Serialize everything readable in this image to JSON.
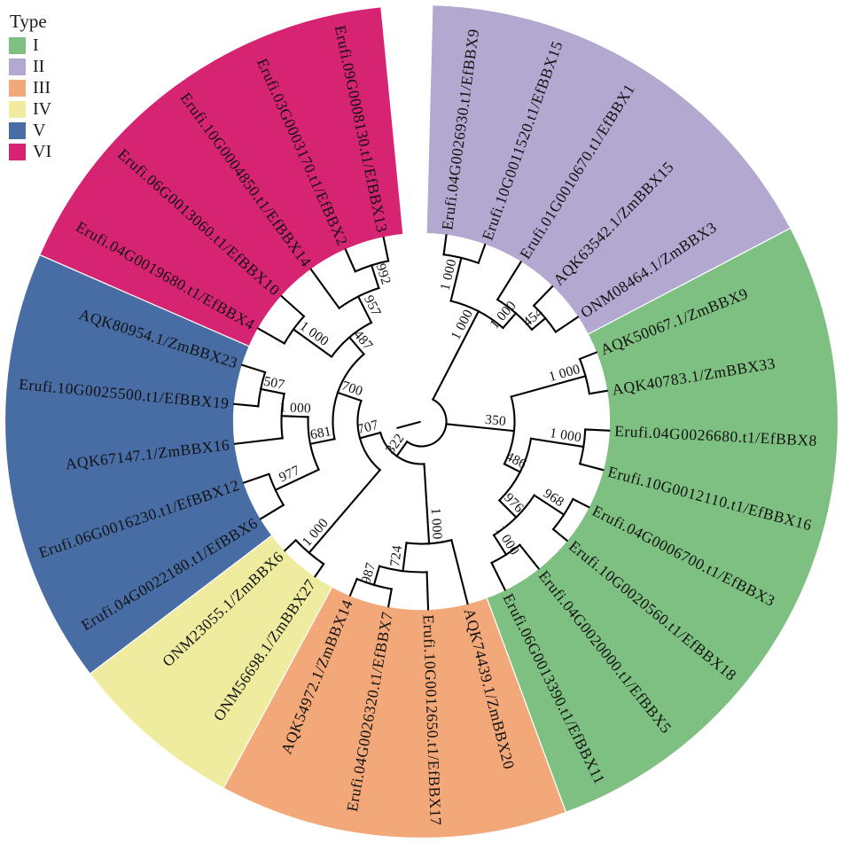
{
  "figure": {
    "kind": "circular-phylogenetic-tree",
    "background": "#ffffff",
    "branch_color": "#000000",
    "sector_divider_color": "#ffffff"
  },
  "legend": {
    "title": "Type",
    "items": [
      {
        "label": "I",
        "color": "#7EC081"
      },
      {
        "label": "II",
        "color": "#B3A8D0"
      },
      {
        "label": "III",
        "color": "#F2A878"
      },
      {
        "label": "IV",
        "color": "#EFEC9F"
      },
      {
        "label": "V",
        "color": "#486CA4"
      },
      {
        "label": "VI",
        "color": "#D62473"
      }
    ]
  },
  "chart_data": {
    "type": "circular-cladogram",
    "title": "",
    "legend_position": "top-left",
    "groups": {
      "I": [
        "AQK50067.1/ZmBBX9",
        "AQK40783.1/ZmBBX33",
        "Erufi.04G0026680.t1/EfBBX8",
        "Erufi.10G0012110.t1/EfBBX16",
        "Erufi.04G0006700.t1/EfBBX3",
        "Erufi.10G0020560.t1/EfBBX18",
        "Erufi.04G0020000.t1/EfBBX5",
        "Erufi.06G0013390.t1/EfBBX11"
      ],
      "II": [
        "Erufi.04G0026930.t1/EfBBX9",
        "Erufi.10G0011520.t1/EfBBX15",
        "Erufi.01G0010670.t1/EfBBX1",
        "AQK63542.1/ZmBBX15",
        "ONM08464.1/ZmBBX3"
      ],
      "III": [
        "AQK74439.1/ZmBBX20",
        "Erufi.10G0012650.t1/EfBBX17",
        "Erufi.04G0026320.t1/EfBBX7",
        "AQK54972.1/ZmBBX14"
      ],
      "IV": [
        "ONM56698.1/ZmBBX27",
        "ONM23055.1/ZmBBX6"
      ],
      "V": [
        "Erufi.04G0022180.t1/EfBBX6",
        "Erufi.06G0016230.t1/EfBBX12",
        "AQK67147.1/ZmBBX16",
        "Erufi.10G0025500.t1/EfBBX19",
        "AQK80954.1/ZmBBX23"
      ],
      "VI": [
        "Erufi.04G0019680.t1/EfBBX4",
        "Erufi.06G0013060.t1/EfBBX10",
        "Erufi.10G0004850.t1/EfBBX14",
        "Erufi.03G0003170.t1/EfBBX2",
        "Erufi.09G0008130.t1/EfBBX13"
      ]
    },
    "tree": {
      "r": 28,
      "children": [
        {
          "support": "1 000",
          "r": 140,
          "children": [
            {
              "support": "1 000",
              "r": 190,
              "children": [
                {
                  "leaf": "Erufi.04G0026930.t1/EfBBX9",
                  "type": "II"
                },
                {
                  "leaf": "Erufi.10G0011520.t1/EfBBX15",
                  "type": "II"
                }
              ]
            },
            {
              "support": "1 000",
              "r": 162,
              "children": [
                {
                  "leaf": "Erufi.01G0010670.t1/EfBBX1",
                  "type": "II"
                },
                {
                  "support": "454",
                  "r": 182,
                  "children": [
                    {
                      "leaf": "AQK63542.1/ZmBBX15",
                      "type": "II"
                    },
                    {
                      "leaf": "ONM08464.1/ZmBBX3",
                      "type": "II"
                    }
                  ]
                }
              ]
            }
          ]
        },
        {
          "support": "350",
          "r": 105,
          "children": [
            {
              "support": "1 000",
              "r": 192,
              "children": [
                {
                  "leaf": "AQK50067.1/ZmBBX9",
                  "type": "I"
                },
                {
                  "leaf": "AQK40783.1/ZmBBX33",
                  "type": "I"
                }
              ]
            },
            {
              "support": "486",
              "r": 125,
              "children": [
                {
                  "support": "1 000",
                  "r": 185,
                  "children": [
                    {
                      "leaf": "Erufi.04G0026680.t1/EfBBX8",
                      "type": "I"
                    },
                    {
                      "leaf": "Erufi.10G0012110.t1/EfBBX16",
                      "type": "I"
                    }
                  ]
                },
                {
                  "support": "976",
                  "r": 152,
                  "children": [
                    {
                      "support": "968",
                      "r": 192,
                      "children": [
                        {
                          "leaf": "Erufi.04G0006700.t1/EfBBX3",
                          "type": "I"
                        },
                        {
                          "leaf": "Erufi.10G0020560.t1/EfBBX18",
                          "type": "I"
                        }
                      ]
                    },
                    {
                      "support": "1 000",
                      "r": 178,
                      "children": [
                        {
                          "leaf": "Erufi.04G0020000.t1/EfBBX5",
                          "type": "I"
                        },
                        {
                          "leaf": "Erufi.06G0013390.t1/EfBBX11",
                          "type": "I"
                        }
                      ]
                    }
                  ]
                }
              ]
            }
          ]
        },
        {
          "support": "322",
          "r": 48,
          "children": [
            {
              "support": "1 000",
              "r": 138,
              "children": [
                {
                  "leaf": "AQK74439.1/ZmBBX20",
                  "type": "III"
                },
                {
                  "support": "724",
                  "r": 170,
                  "children": [
                    {
                      "leaf": "Erufi.10G0012650.t1/EfBBX17",
                      "type": "III"
                    },
                    {
                      "support": "987",
                      "r": 192,
                      "children": [
                        {
                          "leaf": "Erufi.04G0026320.t1/EfBBX7",
                          "type": "III"
                        },
                        {
                          "leaf": "AQK54972.1/ZmBBX14",
                          "type": "III"
                        }
                      ]
                    }
                  ]
                }
              ]
            },
            {
              "support": "707",
              "r": 72,
              "children": [
                {
                  "support": "1 000",
                  "r": 195,
                  "children": [
                    {
                      "leaf": "ONM56698.1/ZmBBX27",
                      "type": "IV"
                    },
                    {
                      "leaf": "ONM23055.1/ZmBBX6",
                      "type": "IV"
                    }
                  ]
                },
                {
                  "support": "700",
                  "r": 100,
                  "children": [
                    {
                      "support": "681",
                      "r": 128,
                      "children": [
                        {
                          "support": "977",
                          "r": 182,
                          "children": [
                            {
                              "leaf": "Erufi.04G0022180.t1/EfBBX6",
                              "type": "V"
                            },
                            {
                              "leaf": "Erufi.06G0016230.t1/EfBBX12",
                              "type": "V"
                            }
                          ]
                        },
                        {
                          "support": "1 000",
                          "r": 158,
                          "children": [
                            {
                              "leaf": "AQK67147.1/ZmBBX16",
                              "type": "V"
                            },
                            {
                              "support": "507",
                              "r": 185,
                              "children": [
                                {
                                  "leaf": "Erufi.10G0025500.t1/EfBBX19",
                                  "type": "V"
                                },
                                {
                                  "leaf": "AQK80954.1/ZmBBX23",
                                  "type": "V"
                                }
                              ]
                            }
                          ]
                        }
                      ]
                    },
                    {
                      "support": "487",
                      "r": 125,
                      "children": [
                        {
                          "support": "1 000",
                          "r": 178,
                          "children": [
                            {
                              "leaf": "Erufi.04G0019680.t1/EfBBX4",
                              "type": "VI"
                            },
                            {
                              "leaf": "Erufi.06G0013060.t1/EfBBX10",
                              "type": "VI"
                            }
                          ]
                        },
                        {
                          "support": "957",
                          "r": 158,
                          "children": [
                            {
                              "leaf": "Erufi.10G0004850.t1/EfBBX14",
                              "type": "VI"
                            },
                            {
                              "support": "992",
                              "r": 185,
                              "children": [
                                {
                                  "leaf": "Erufi.03G0003170.t1/EfBBX2",
                                  "type": "VI"
                                },
                                {
                                  "leaf": "Erufi.09G0008130.t1/EfBBX13",
                                  "type": "VI"
                                }
                              ]
                            }
                          ]
                        }
                      ]
                    }
                  ]
                }
              ]
            }
          ]
        }
      ]
    }
  }
}
